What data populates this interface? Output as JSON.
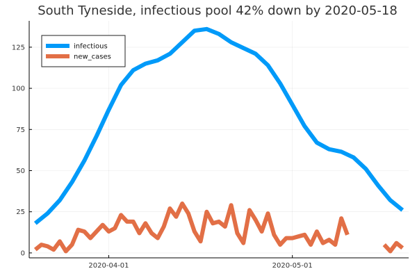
{
  "chart_data": {
    "type": "line",
    "title": "South Tyneside, infectious pool 42% down by 2020-05-18",
    "xlabel": "",
    "ylabel": "",
    "x_start": "2020-03-19",
    "x_end": "2020-05-20",
    "xticks": [
      {
        "date": "2020-04-01",
        "label": "2020-04-01"
      },
      {
        "date": "2020-05-01",
        "label": "2020-05-01"
      }
    ],
    "ylim": [
      -3,
      141
    ],
    "yticks": [
      0,
      25,
      50,
      75,
      100,
      125
    ],
    "grid": true,
    "legend_position": "top-left",
    "series": [
      {
        "name": "infectious",
        "color": "#009af9",
        "x": [
          "2020-03-20",
          "2020-03-22",
          "2020-03-24",
          "2020-03-26",
          "2020-03-28",
          "2020-03-30",
          "2020-04-01",
          "2020-04-03",
          "2020-04-05",
          "2020-04-07",
          "2020-04-09",
          "2020-04-11",
          "2020-04-13",
          "2020-04-15",
          "2020-04-17",
          "2020-04-19",
          "2020-04-21",
          "2020-04-23",
          "2020-04-25",
          "2020-04-27",
          "2020-04-29",
          "2020-05-01",
          "2020-05-03",
          "2020-05-05",
          "2020-05-07",
          "2020-05-09",
          "2020-05-11",
          "2020-05-13",
          "2020-05-15",
          "2020-05-17",
          "2020-05-19"
        ],
        "values": [
          18,
          24,
          32,
          43,
          56,
          71,
          87,
          102,
          111,
          115,
          117,
          121,
          128,
          135,
          136,
          133,
          128,
          124.5,
          121,
          114,
          103,
          90,
          77,
          67,
          63,
          61.5,
          58,
          51,
          41,
          32,
          26
        ]
      },
      {
        "name": "new_cases",
        "color": "#e26f46",
        "x": [
          "2020-03-20",
          "2020-03-21",
          "2020-03-22",
          "2020-03-23",
          "2020-03-24",
          "2020-03-25",
          "2020-03-26",
          "2020-03-27",
          "2020-03-28",
          "2020-03-29",
          "2020-03-30",
          "2020-03-31",
          "2020-04-01",
          "2020-04-02",
          "2020-04-03",
          "2020-04-04",
          "2020-04-05",
          "2020-04-06",
          "2020-04-07",
          "2020-04-08",
          "2020-04-09",
          "2020-04-10",
          "2020-04-11",
          "2020-04-12",
          "2020-04-13",
          "2020-04-14",
          "2020-04-15",
          "2020-04-16",
          "2020-04-17",
          "2020-04-18",
          "2020-04-19",
          "2020-04-20",
          "2020-04-21",
          "2020-04-22",
          "2020-04-23",
          "2020-04-24",
          "2020-04-25",
          "2020-04-26",
          "2020-04-27",
          "2020-04-28",
          "2020-04-29",
          "2020-04-30",
          "2020-05-01",
          "2020-05-02",
          "2020-05-03",
          "2020-05-04",
          "2020-05-05",
          "2020-05-06",
          "2020-05-07",
          "2020-05-08",
          "2020-05-09",
          "2020-05-10",
          "2020-05-11",
          "2020-05-12",
          "2020-05-13",
          "2020-05-14",
          "2020-05-15",
          "2020-05-16",
          "2020-05-17",
          "2020-05-18",
          "2020-05-19",
          "2020-05-20"
        ],
        "values": [
          2,
          5,
          4,
          2,
          7,
          1,
          5,
          14,
          13,
          9,
          13,
          17,
          13,
          15,
          23,
          19,
          19,
          12,
          18,
          12,
          9,
          16,
          27,
          22,
          30,
          24,
          13,
          7,
          25,
          18,
          19,
          16,
          29,
          12,
          6,
          26,
          20,
          13,
          24,
          11,
          5,
          9,
          9,
          10,
          11,
          5,
          13,
          6,
          8,
          5,
          21,
          11,
          null,
          null,
          null,
          null,
          null,
          5,
          1,
          6,
          3,
          null
        ]
      }
    ]
  }
}
